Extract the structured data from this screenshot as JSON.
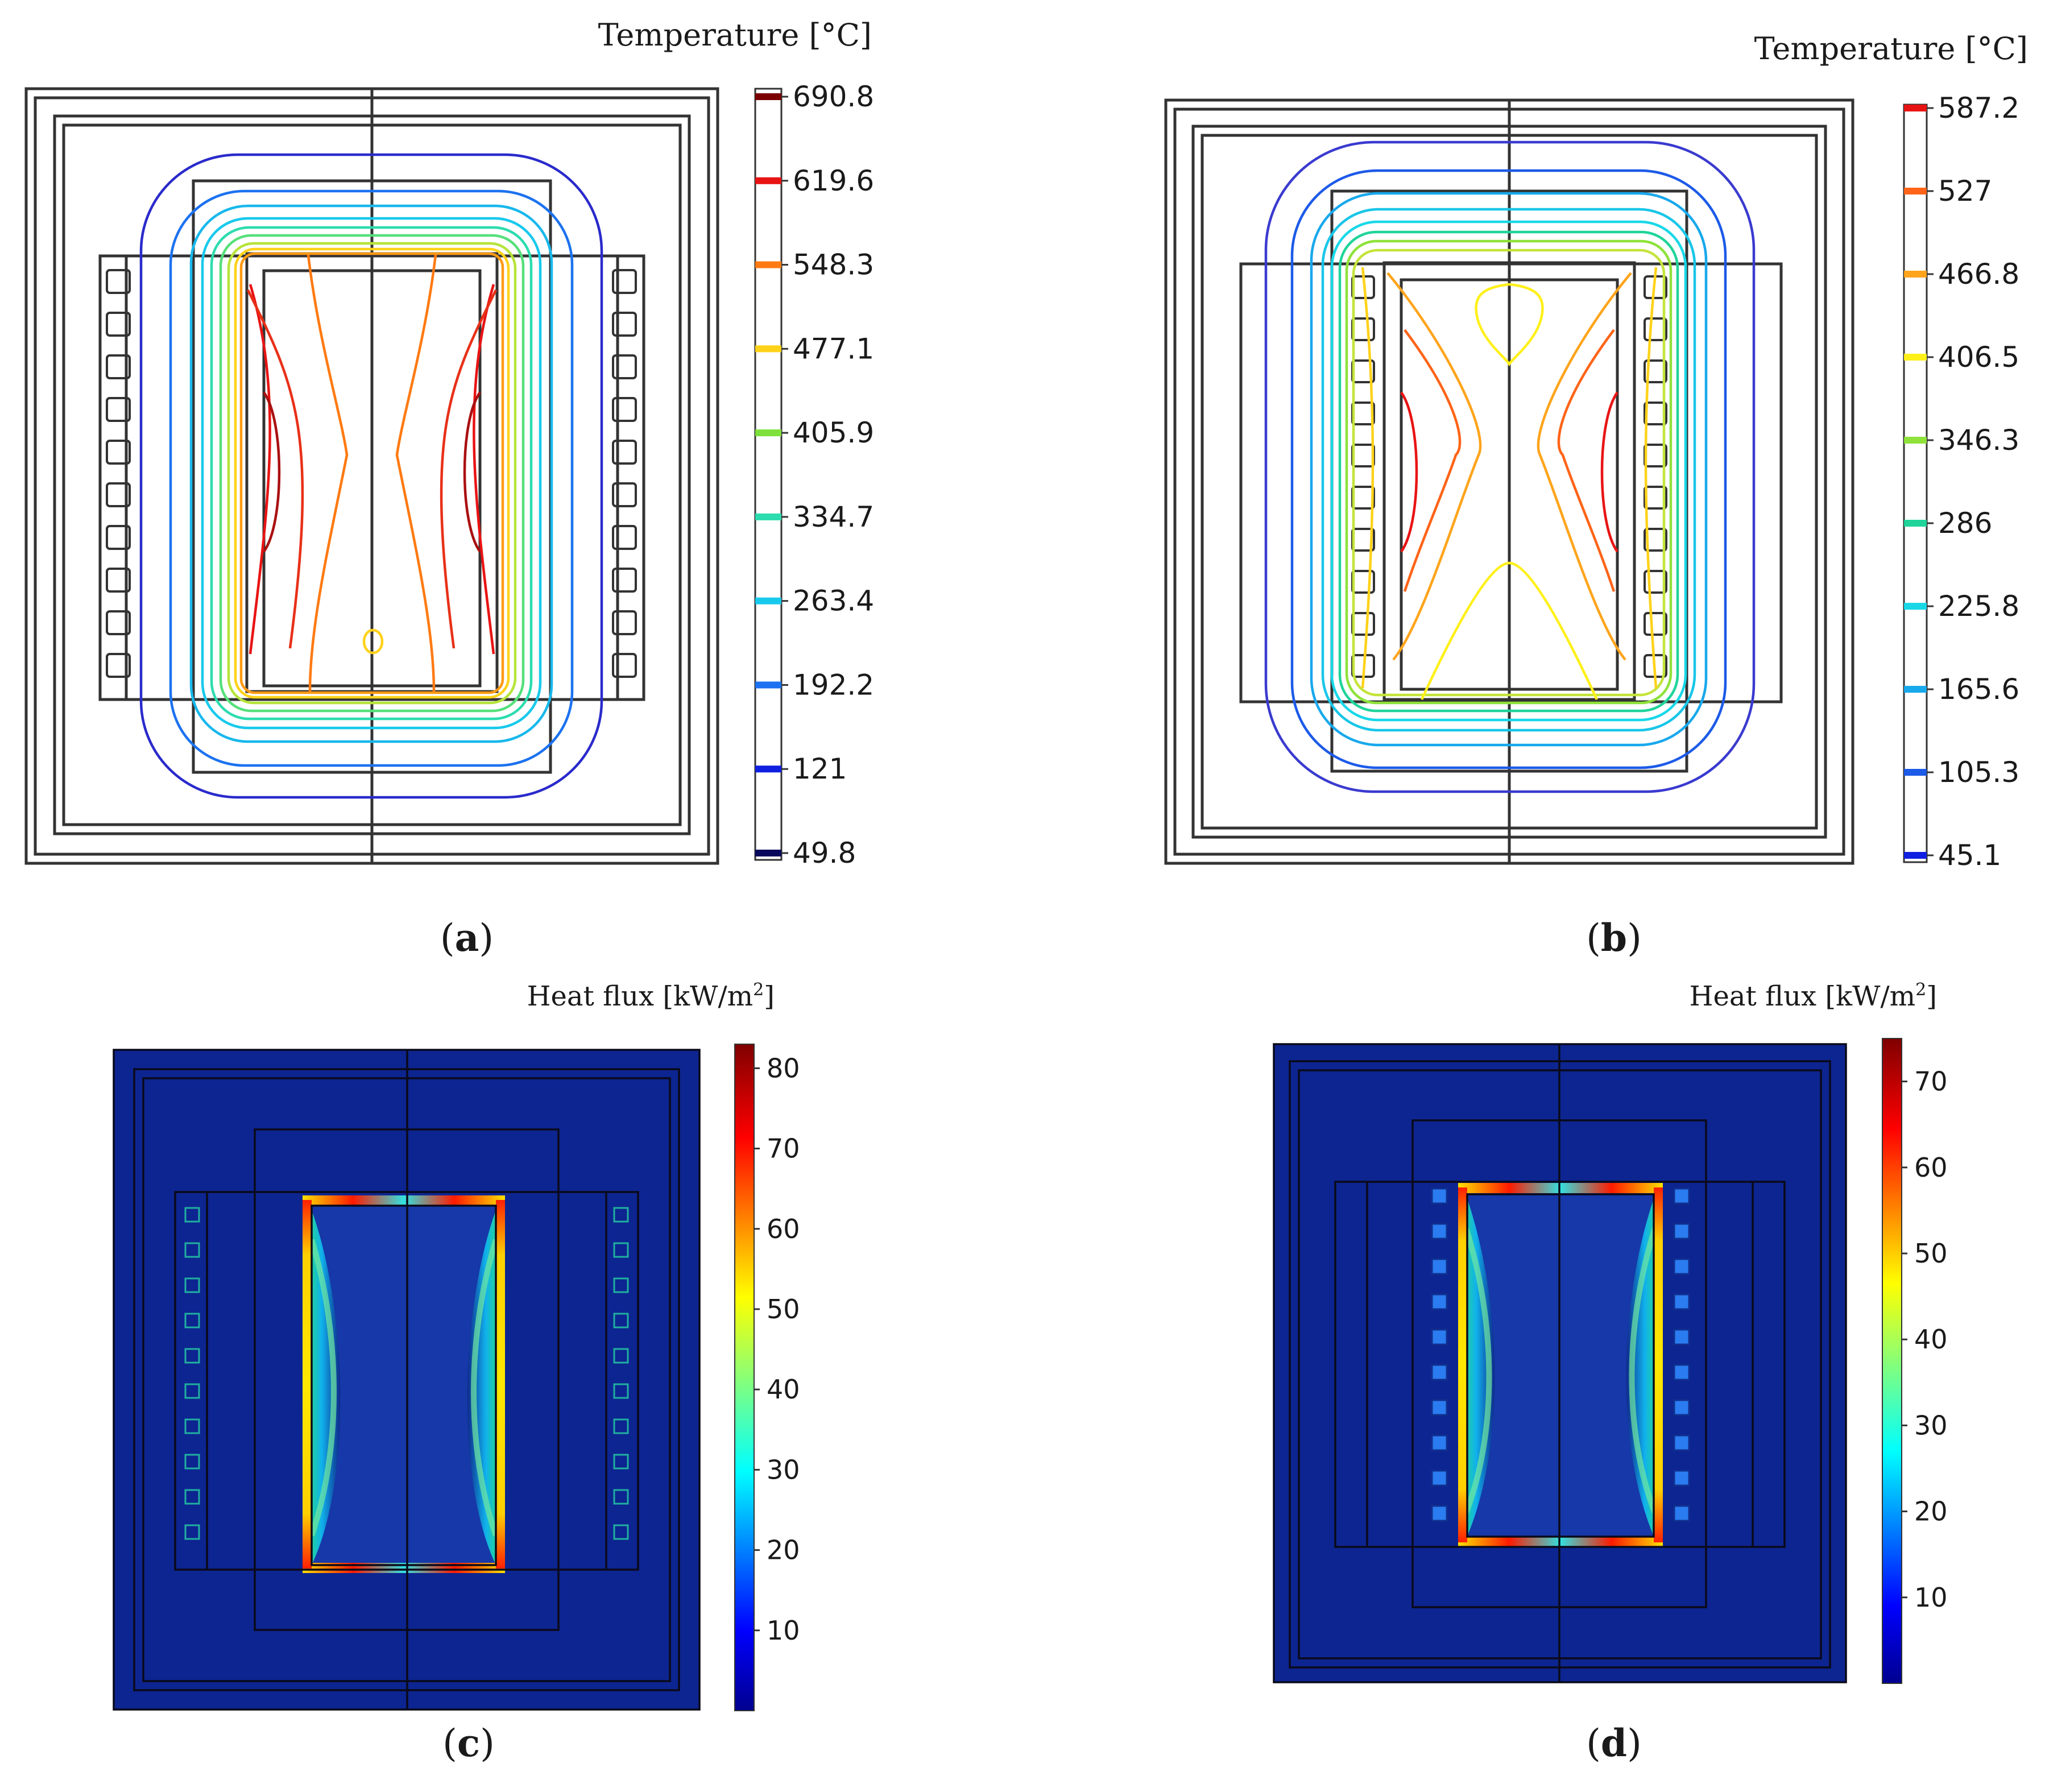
{
  "panels": [
    {
      "label": "(a)",
      "kind": "temperature-contour",
      "legend_title": "Temperature [°C]",
      "ticks": [
        "690.8",
        "619.6",
        "548.3",
        "477.1",
        "405.9",
        "334.7",
        "263.4",
        "192.2",
        "121",
        "49.8"
      ],
      "tick_colors": [
        "#7a0000",
        "#e81414",
        "#ff7a12",
        "#ffd21a",
        "#7ee03a",
        "#2cdcae",
        "#18c9ec",
        "#1c72f0",
        "#1020e0",
        "#08085c"
      ]
    },
    {
      "label": "(b)",
      "kind": "temperature-contour",
      "legend_title": "Temperature [°C]",
      "ticks": [
        "587.2",
        "527",
        "466.8",
        "406.5",
        "346.3",
        "286",
        "225.8",
        "165.6",
        "105.3",
        "45.1"
      ],
      "tick_colors": [
        "#e81414",
        "#ff6418",
        "#ffa41c",
        "#fff01a",
        "#8ee23a",
        "#20d49a",
        "#18d8e8",
        "#18a8ec",
        "#1c5ae8",
        "#1020e0"
      ]
    },
    {
      "label": "(c)",
      "kind": "heat-flux-map",
      "legend_title": "Heat flux [kW/m",
      "legend_sup": "2",
      "legend_close": "]",
      "ticks": [
        "80",
        "70",
        "60",
        "50",
        "40",
        "30",
        "20",
        "10"
      ],
      "range": [
        0,
        83
      ]
    },
    {
      "label": "(d)",
      "kind": "heat-flux-map",
      "legend_title": "Heat flux [kW/m",
      "legend_sup": "2",
      "legend_close": "]",
      "ticks": [
        "70",
        "60",
        "50",
        "40",
        "30",
        "20",
        "10"
      ],
      "range": [
        0,
        75
      ]
    }
  ]
}
